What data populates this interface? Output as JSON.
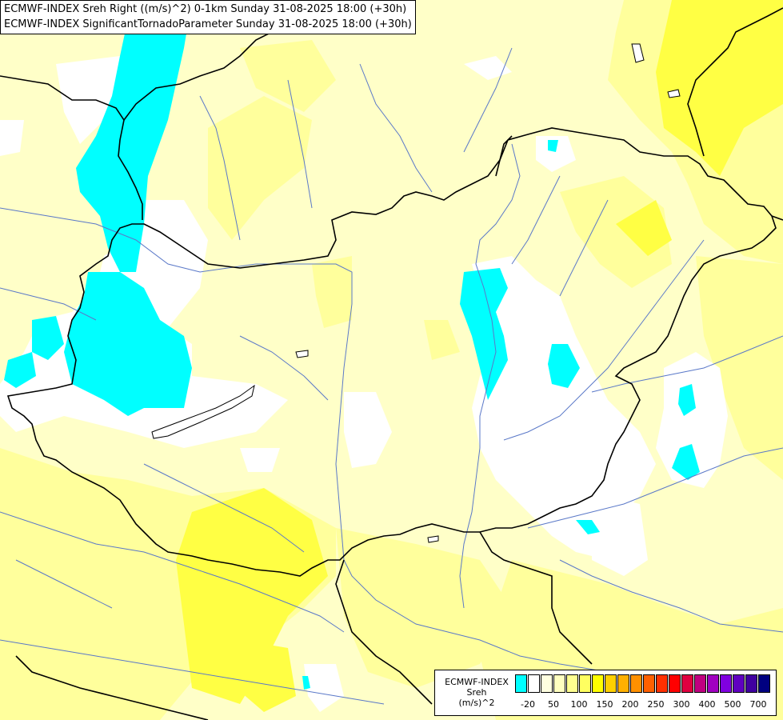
{
  "title": {
    "line1": "ECMWF-INDEX Sreh Right ((m/s)^2) 0-1km Sunday 31-08-2025 18:00 (+30h)",
    "line2": "ECMWF-INDEX SignificantTornadoParameter Sunday 31-08-2025 18:00 (+30h)"
  },
  "legend": {
    "title1": "ECMWF-INDEX",
    "title2": "Sreh",
    "title3": "(m/s)^2",
    "colors": [
      "#00ffff",
      "#ffffff",
      "#ffffe0",
      "#ffffc0",
      "#ffff90",
      "#ffff60",
      "#ffff00",
      "#ffd000",
      "#ffb000",
      "#ff9000",
      "#ff6000",
      "#ff3000",
      "#ff0000",
      "#e00040",
      "#c00080",
      "#a000c0",
      "#8000e0",
      "#6000c0",
      "#4000a0",
      "#000080"
    ],
    "labels": [
      "-20",
      "50",
      "100",
      "150",
      "200",
      "250",
      "300",
      "400",
      "500",
      "700"
    ]
  },
  "colors": {
    "base": "#ffffc8",
    "low": "#ffff9c",
    "moderate": "#ffff44",
    "negative": "#00ffff",
    "zero": "#ffffff",
    "border": "#000000",
    "river": "#5a78c8"
  },
  "features": [
    "Danube",
    "Tisza",
    "Lake Balaton",
    "Hungary"
  ]
}
